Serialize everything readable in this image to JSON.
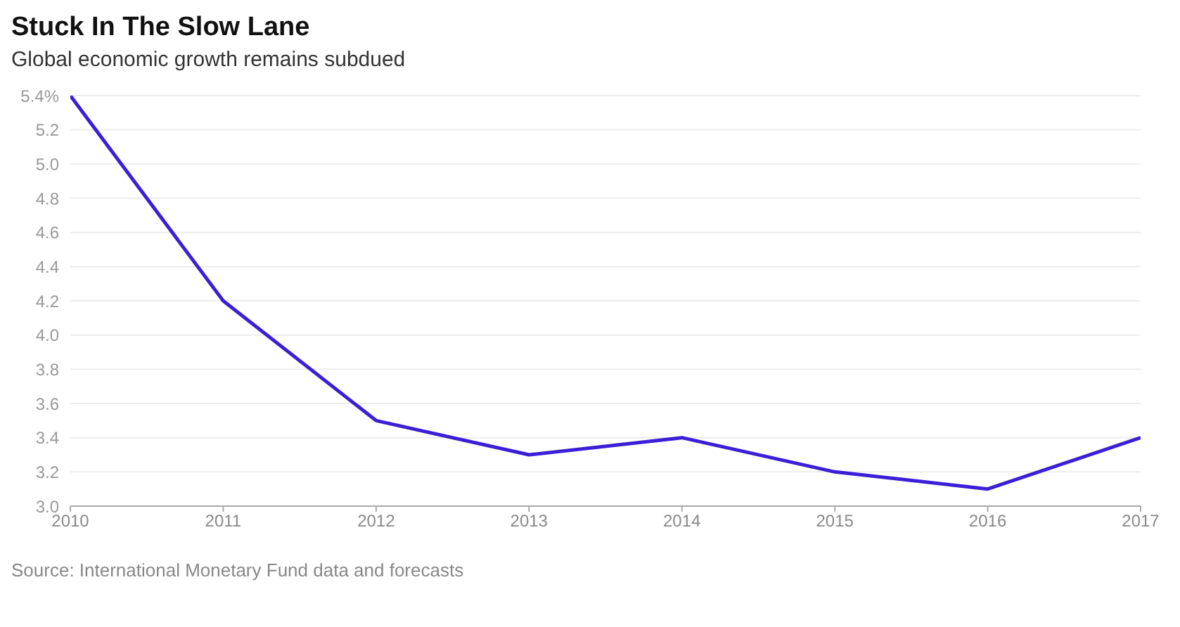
{
  "chart_data": {
    "type": "line",
    "title": "Stuck In The Slow Lane",
    "subtitle": "Global economic growth remains subdued",
    "x": [
      2010,
      2011,
      2012,
      2013,
      2014,
      2015,
      2016,
      2017
    ],
    "series": [
      {
        "color": "#3b1fd6",
        "values": [
          5.4,
          4.2,
          3.5,
          3.3,
          3.4,
          3.2,
          3.1,
          3.4
        ]
      }
    ],
    "xlim": [
      2010,
      2017
    ],
    "xticks": [
      2010,
      2011,
      2012,
      2013,
      2014,
      2015,
      2016,
      2017
    ],
    "ylim": [
      3.0,
      5.4
    ],
    "yticks": [
      {
        "value": 3.0,
        "label": "3.0"
      },
      3.2,
      3.4,
      3.6,
      3.8,
      {
        "value": 4.0,
        "label": "4.0"
      },
      4.2,
      4.4,
      4.6,
      4.8,
      {
        "value": 5.0,
        "label": "5.0"
      },
      5.2,
      {
        "value": 5.4,
        "label": "5.4%"
      }
    ],
    "grid": "y",
    "marker": "none",
    "line_style": "solid",
    "legend": false,
    "annotations": [
      "Source: International Monetary Fund data and forecasts"
    ]
  }
}
